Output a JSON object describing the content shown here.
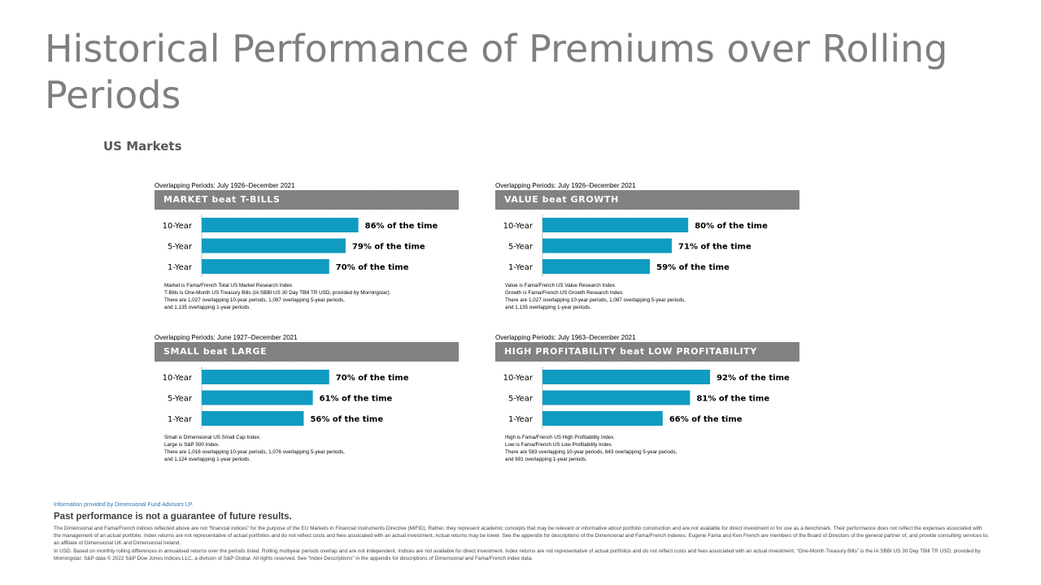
{
  "title": "Historical Performance of Premiums over Rolling Periods",
  "subtitle": "US Markets",
  "chart_data": [
    {
      "type": "bar",
      "orientation": "horizontal",
      "period": "Overlapping Periods: July 1926–December 2021",
      "title": "MARKET beat T-BILLS",
      "categories": [
        "10-Year",
        "5-Year",
        "1-Year"
      ],
      "values": [
        86,
        79,
        70
      ],
      "data_labels": [
        "86% of the time",
        "79% of the time",
        "70% of the time"
      ],
      "xlim": [
        0,
        100
      ],
      "bar_color": "#109bc1",
      "notes": [
        "Market is Fama/French Total US Market Research Index.",
        "T-Bills is One-Month US Treasury Bills (IA SBBI US 30 Day TBill TR USD, provided by Morningstar).",
        "There are 1,027 overlapping 10-year periods, 1,087 overlapping 5-year periods,",
        "and 1,135 overlapping 1-year periods."
      ]
    },
    {
      "type": "bar",
      "orientation": "horizontal",
      "period": "Overlapping Periods: July 1926–December 2021",
      "title": "VALUE beat GROWTH",
      "categories": [
        "10-Year",
        "5-Year",
        "1-Year"
      ],
      "values": [
        80,
        71,
        59
      ],
      "data_labels": [
        "80% of the time",
        "71% of the time",
        "59% of the time"
      ],
      "xlim": [
        0,
        100
      ],
      "bar_color": "#109bc1",
      "notes": [
        "Value is Fama/French US Value Research Index.",
        "Growth is Fama/French US Growth Research Index.",
        "There are 1,027 overlapping 10-year periods, 1,087 overlapping 5-year periods,",
        "and 1,135 overlapping 1-year periods."
      ]
    },
    {
      "type": "bar",
      "orientation": "horizontal",
      "period": "Overlapping Periods: June 1927–December 2021",
      "title": "SMALL beat LARGE",
      "categories": [
        "10-Year",
        "5-Year",
        "1-Year"
      ],
      "values": [
        70,
        61,
        56
      ],
      "data_labels": [
        "70% of the time",
        "61% of the time",
        "56% of the time"
      ],
      "xlim": [
        0,
        100
      ],
      "bar_color": "#109bc1",
      "notes": [
        "Small is Dimensional US Small Cap Index.",
        "Large is S&P 500 Index.",
        "There are 1,016 overlapping 10-year periods, 1,076 overlapping 5-year periods,",
        "and 1,124 overlapping 1-year periods."
      ]
    },
    {
      "type": "bar",
      "orientation": "horizontal",
      "period": "Overlapping Periods: July 1963–December 2021",
      "title": "HIGH PROFITABILITY beat LOW PROFITABILITY",
      "categories": [
        "10-Year",
        "5-Year",
        "1-Year"
      ],
      "values": [
        92,
        81,
        66
      ],
      "data_labels": [
        "92% of the time",
        "81% of the time",
        "66% of the time"
      ],
      "xlim": [
        0,
        100
      ],
      "bar_color": "#109bc1",
      "notes": [
        "High is Fama/French US High Profitability Index.",
        "Low is Fama/French US Low Profitability Index.",
        "There are 583 overlapping 10-year periods, 643 overlapping 5-year periods,",
        "and 691 overlapping 1-year periods."
      ]
    }
  ],
  "footer": {
    "source": "Information provided by Dimensional Fund Advisors LP.",
    "warning": "Past performance is not a guarantee of future results.",
    "disclaimer": [
      "The Dimensional and Fama/French indices reflected above are not “financial indices” for the purpose of the EU Markets in Financial Instruments Directive (MiFID). Rather, they represent academic concepts that may be relevant or informative about portfolio construction and are not available for direct investment or for use as a benchmark. Their performance does not reflect the expenses associated with the management of an actual portfolio. Index returns are not representative of actual portfolios and do not reflect costs and fees associated with an actual investment. Actual returns may be lower. See the appendix for descriptions of the Dimensional and Fama/French indexes. Eugene Fama and Ken French are members of the Board of Directors of the general partner of, and provide consulting services to, an affiliate of Dimensional UK and Dimensional Ireland.",
      "In USD. Based on monthly rolling differences in annualised returns over the periods listed. Rolling multiyear periods overlap and are not independent. Indices are not available for direct investment. Index returns are not representative of actual portfolios and do not reflect costs and fees associated with an actual investment. “One-Month Treasury Bills” is the IA SBBI US 30 Day TBill TR USD, provided by Morningstar. S&P data © 2022 S&P Dow Jones Indices LLC, a division of S&P Global. All rights reserved. See “Index Descriptions” in the appendix for descriptions of Dimensional and Fama/French index data."
    ]
  }
}
